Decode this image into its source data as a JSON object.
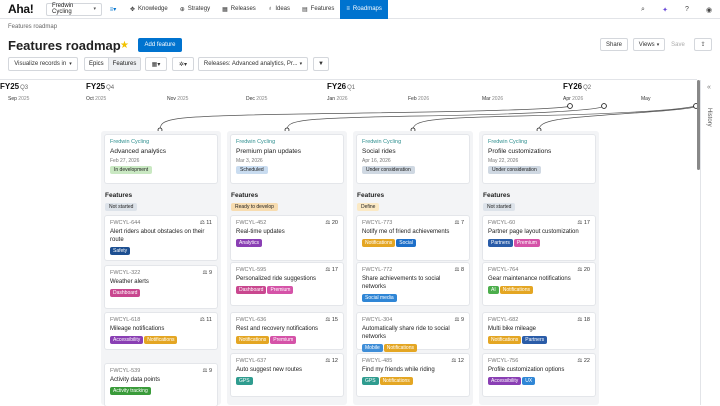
{
  "nav": {
    "logo": "Aha!",
    "workspace": "Fredwin Cycling",
    "items": [
      {
        "label": "Knowledge",
        "icon": "knowledge-icon",
        "glyph": "✥"
      },
      {
        "label": "Strategy",
        "icon": "strategy-icon",
        "glyph": "⊕"
      },
      {
        "label": "Releases",
        "icon": "calendar-icon",
        "glyph": "▦"
      },
      {
        "label": "Ideas",
        "icon": "lightbulb-icon",
        "glyph": "♁"
      },
      {
        "label": "Features",
        "icon": "features-icon",
        "glyph": "▤"
      },
      {
        "label": "Roadmaps",
        "icon": "roadmap-icon",
        "glyph": "≡"
      }
    ]
  },
  "breadcrumb": "Features roadmap",
  "page": {
    "title": "Features roadmap",
    "add_feature": "Add feature",
    "share": "Share",
    "views": "Views",
    "save": "Save"
  },
  "toolbar": {
    "visualize": "Visualize records in",
    "seg_epics": "Epics",
    "seg_features": "Features",
    "filter_releases": "Releases: Advanced analytics, Pr..."
  },
  "timeline": {
    "fiscal": [
      {
        "fy": "FY25",
        "q": "Q3"
      },
      {
        "fy": "FY25",
        "q": "Q4"
      },
      {
        "fy": "FY26",
        "q": "Q1"
      },
      {
        "fy": "FY26",
        "q": "Q2"
      }
    ],
    "months": [
      {
        "m": "Sep",
        "y": "2025"
      },
      {
        "m": "Oct",
        "y": "2025"
      },
      {
        "m": "Nov",
        "y": "2025"
      },
      {
        "m": "Dec",
        "y": "2025"
      },
      {
        "m": "Jan",
        "y": "2026"
      },
      {
        "m": "Feb",
        "y": "2026"
      },
      {
        "m": "Mar",
        "y": "2026"
      },
      {
        "m": "Apr",
        "y": "2026"
      },
      {
        "m": "May",
        "y": ""
      }
    ]
  },
  "history_label": "History",
  "features_label": "Features",
  "columns": [
    {
      "workspace": "Fredwin Cycling",
      "name": "Advanced analytics",
      "date": "Feb 27, 2026",
      "status": "In development",
      "status_color": "#c9e8c2",
      "feature_status": "Not started",
      "feature_status_color": "#dde3ea",
      "features": [
        {
          "ref": "FWCYL-644",
          "count": "11",
          "name": "Alert riders about obstacles on their route",
          "tags": [
            {
              "t": "Safety",
              "c": "#1d4f91"
            }
          ]
        },
        {
          "ref": "FWCYL-322",
          "count": "9",
          "name": "Weather alerts",
          "tags": [
            {
              "t": "Dashboard",
              "c": "#c9478f"
            }
          ]
        },
        {
          "ref": "FWCYL-618",
          "count": "11",
          "name": "Mileage notifications",
          "tags": [
            {
              "t": "Accessibility",
              "c": "#8a3fb4"
            },
            {
              "t": "Notifications",
              "c": "#e4a623"
            }
          ]
        },
        {
          "ref": "FWCYL-539",
          "count": "9",
          "name": "Activity data points",
          "tags": [
            {
              "t": "Activity tracking",
              "c": "#3a9b3a"
            }
          ]
        }
      ]
    },
    {
      "workspace": "Fredwin Cycling",
      "name": "Premium plan updates",
      "date": "Mar 3, 2026",
      "status": "Scheduled",
      "status_color": "#c9dcf0",
      "feature_status": "Ready to develop",
      "feature_status_color": "#f7dcb0",
      "features": [
        {
          "ref": "FWCYL-452",
          "count": "20",
          "name": "Real-time updates",
          "tags": [
            {
              "t": "Analytics",
              "c": "#8a3fb4"
            }
          ]
        },
        {
          "ref": "FWCYL-595",
          "count": "17",
          "name": "Personalized ride suggestions",
          "tags": [
            {
              "t": "Dashboard",
              "c": "#c9478f"
            },
            {
              "t": "Premium",
              "c": "#d553a8"
            }
          ]
        },
        {
          "ref": "FWCYL-636",
          "count": "15",
          "name": "Rest and recovery notifications",
          "tags": [
            {
              "t": "Notifications",
              "c": "#e4a623"
            },
            {
              "t": "Premium",
              "c": "#d553a8"
            }
          ]
        },
        {
          "ref": "FWCYL-637",
          "count": "12",
          "name": "Auto suggest new routes",
          "tags": [
            {
              "t": "GPS",
              "c": "#2f9c8f"
            }
          ]
        }
      ]
    },
    {
      "workspace": "Fredwin Cycling",
      "name": "Social rides",
      "date": "Apr 16, 2026",
      "status": "Under consideration",
      "status_color": "#cfd8e2",
      "feature_status": "Define",
      "feature_status_color": "#fbe9c4",
      "features": [
        {
          "ref": "FWCYL-773",
          "count": "7",
          "name": "Notify me of friend achievements",
          "tags": [
            {
              "t": "Notifications",
              "c": "#e4a623"
            },
            {
              "t": "Social",
              "c": "#1d6fc9"
            }
          ]
        },
        {
          "ref": "FWCYL-772",
          "count": "8",
          "name": "Share achievements to social networks",
          "tags": [
            {
              "t": "Social media",
              "c": "#2f86d6"
            }
          ]
        },
        {
          "ref": "FWCYL-304",
          "count": "9",
          "name": "Automatically share ride to social networks",
          "tags": [
            {
              "t": "Mobile",
              "c": "#3f8ed8"
            },
            {
              "t": "Notifications",
              "c": "#e4a623"
            }
          ]
        },
        {
          "ref": "FWCYL-485",
          "count": "12",
          "name": "Find my friends while riding",
          "tags": [
            {
              "t": "GPS",
              "c": "#2f9c8f"
            },
            {
              "t": "Notifications",
              "c": "#e4a623"
            }
          ]
        }
      ]
    },
    {
      "workspace": "Fredwin Cycling",
      "name": "Profile customizations",
      "date": "May 22, 2026",
      "status": "Under consideration",
      "status_color": "#cfd8e2",
      "feature_status": "Not started",
      "feature_status_color": "#dde3ea",
      "features": [
        {
          "ref": "FWCYL-60",
          "count": "17",
          "name": "Partner page layout customization",
          "tags": [
            {
              "t": "Partners",
              "c": "#2a5ca8"
            },
            {
              "t": "Premium",
              "c": "#d553a8"
            }
          ]
        },
        {
          "ref": "FWCYL-764",
          "count": "20",
          "name": "Gear maintenance notifications",
          "tags": [
            {
              "t": "AI",
              "c": "#4cae4c"
            },
            {
              "t": "Notifications",
              "c": "#e4a623"
            }
          ]
        },
        {
          "ref": "FWCYL-682",
          "count": "18",
          "name": "Multi bike mileage",
          "tags": [
            {
              "t": "Notifications",
              "c": "#e4a623"
            },
            {
              "t": "Partners",
              "c": "#2a5ca8"
            }
          ]
        },
        {
          "ref": "FWCYL-756",
          "count": "22",
          "name": "Profile customization options",
          "tags": [
            {
              "t": "Accessibility",
              "c": "#8a3fb4"
            },
            {
              "t": "UX",
              "c": "#2f86d6"
            }
          ]
        }
      ]
    }
  ]
}
